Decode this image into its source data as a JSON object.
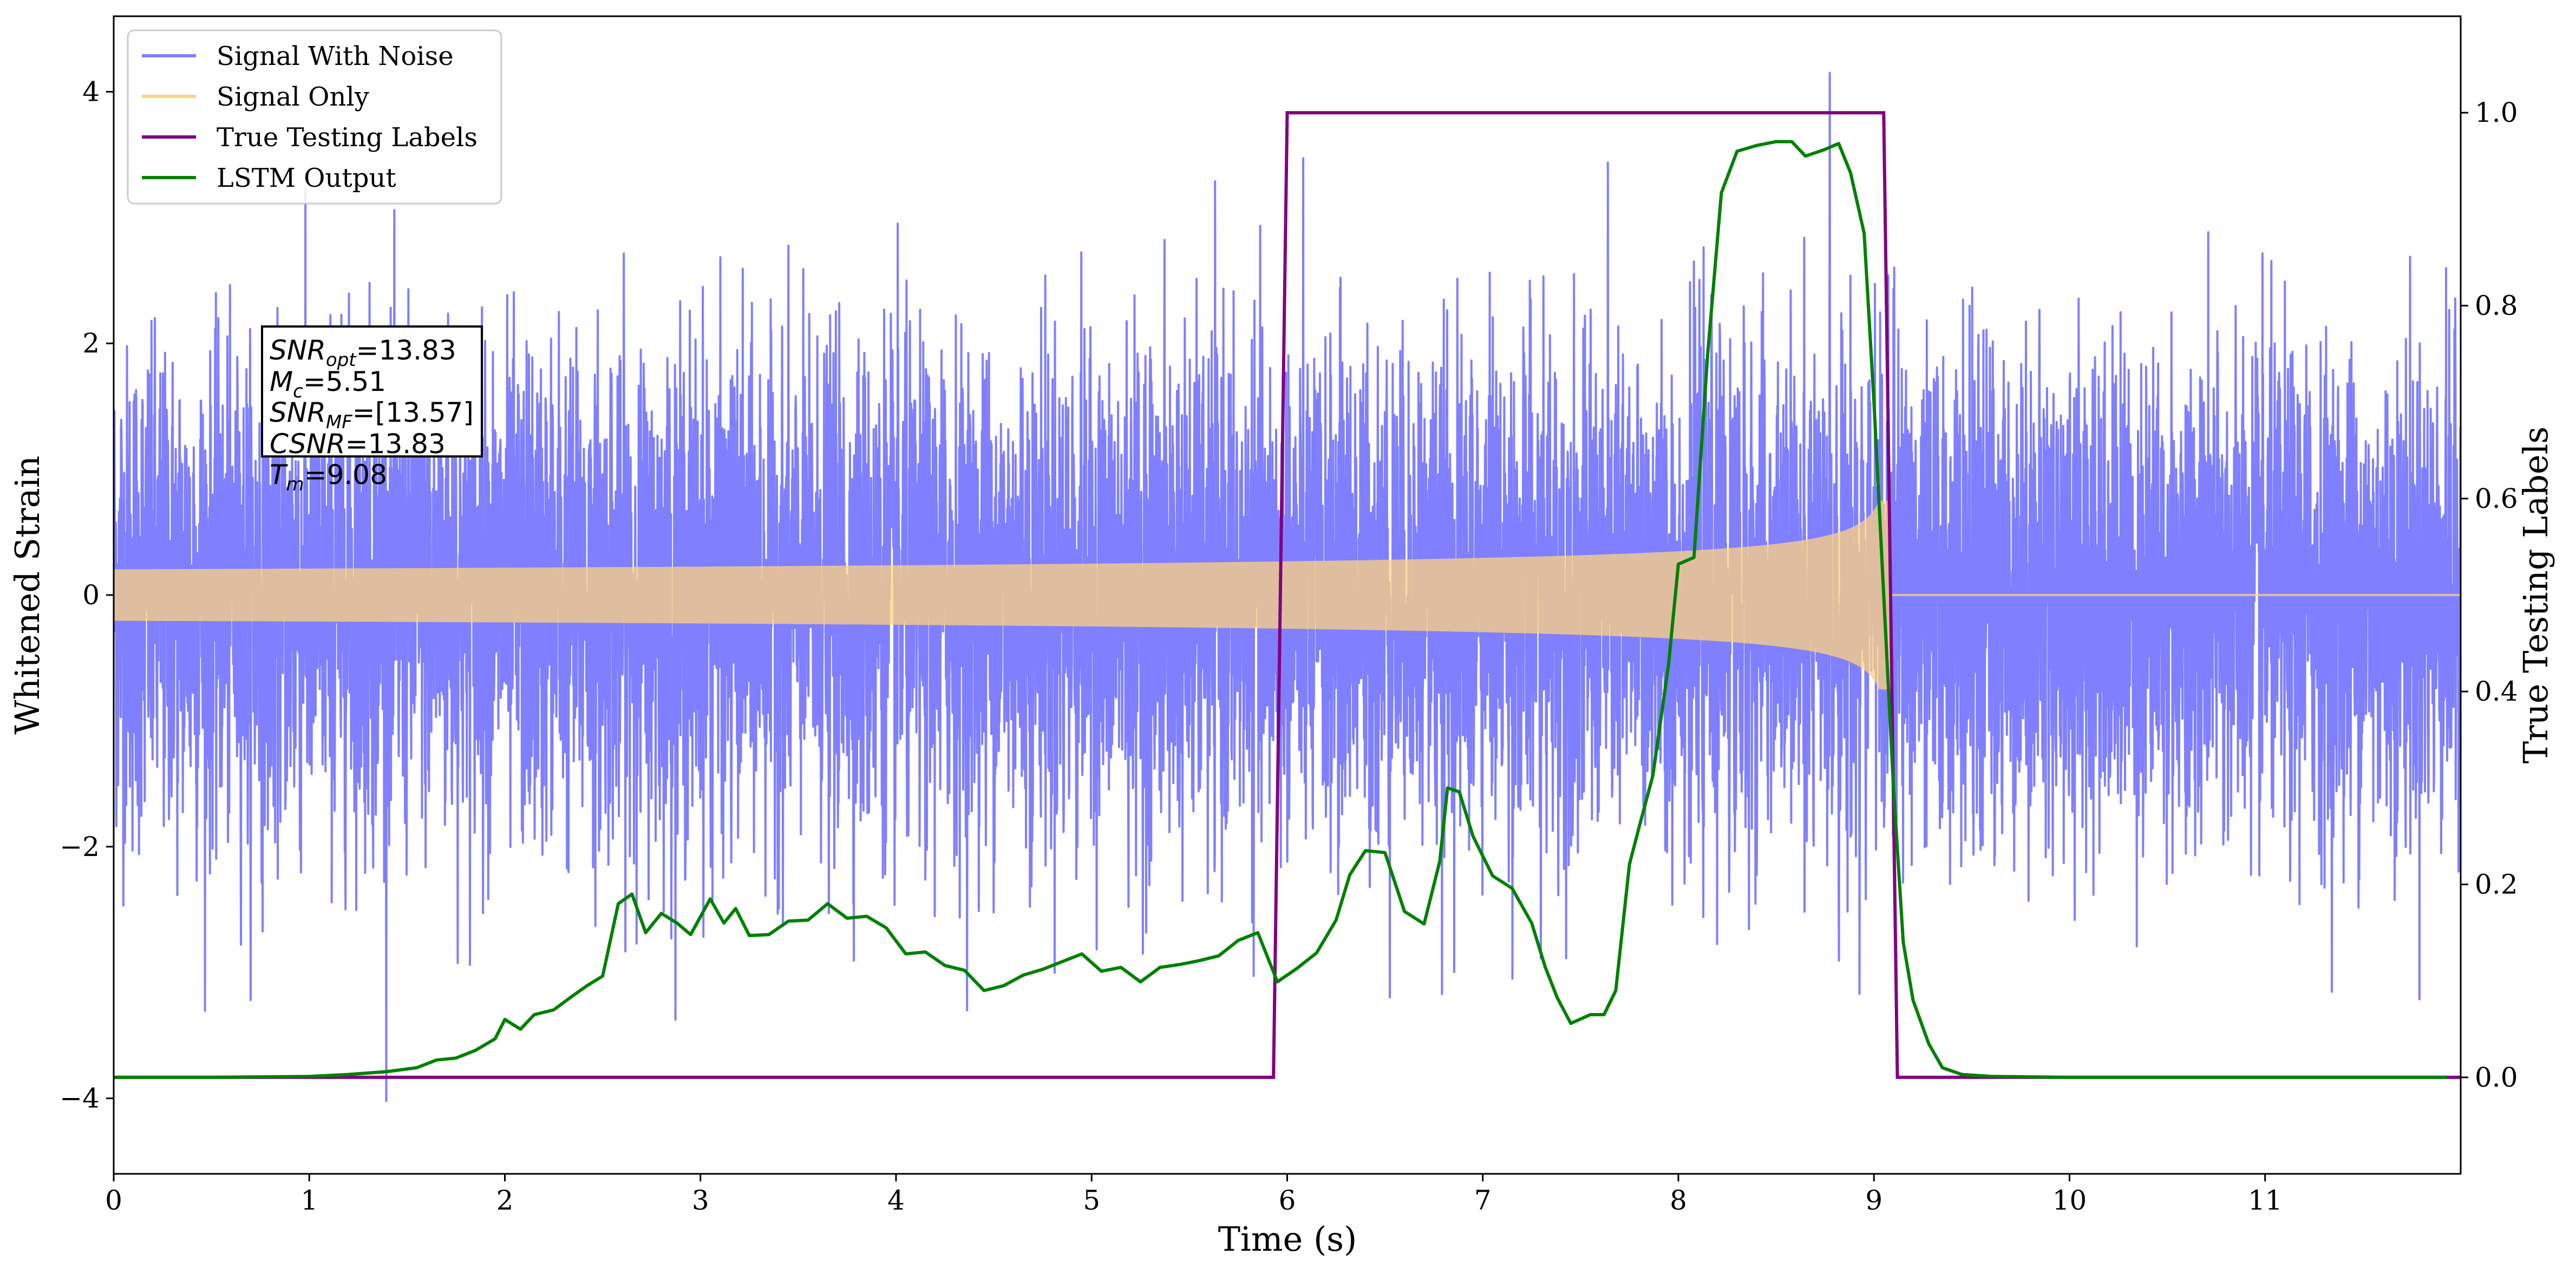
{
  "chart_data": {
    "type": "line",
    "xlabel": "Time (s)",
    "ylabel_left": "Whitened Strain",
    "ylabel_right": "True Testing Labels",
    "xlim": [
      0,
      12
    ],
    "ylim_left": [
      -4.6,
      4.6
    ],
    "ylim_right": [
      -0.1,
      1.1
    ],
    "x_ticks": [
      0,
      1,
      2,
      3,
      4,
      5,
      6,
      7,
      8,
      9,
      10,
      11
    ],
    "y_ticks_left": [
      -4,
      -2,
      0,
      2,
      4
    ],
    "y_ticks_right": [
      0.0,
      0.2,
      0.4,
      0.6,
      0.8,
      1.0
    ],
    "x_tick_labels": [
      "0",
      "1",
      "2",
      "3",
      "4",
      "5",
      "6",
      "7",
      "8",
      "9",
      "10",
      "11"
    ],
    "y_tick_labels_left": [
      "−4",
      "−2",
      "0",
      "2",
      "4"
    ],
    "y_tick_labels_right": [
      "0.0",
      "0.2",
      "0.4",
      "0.6",
      "0.8",
      "1.0"
    ],
    "grid": false,
    "legend_position": "top-left",
    "legend": [
      {
        "name": "Signal With Noise",
        "color": "#7f7fff"
      },
      {
        "name": "Signal Only",
        "color": "#ffd37f"
      },
      {
        "name": "True Testing Labels",
        "color": "#800080"
      },
      {
        "name": "LSTM Output",
        "color": "#008000"
      }
    ],
    "series": [
      {
        "name": "Signal With Noise",
        "axis": "left",
        "style": "noise",
        "noise_std": 0.95,
        "noise_range": [
          -4.2,
          4.15
        ],
        "color": "#7f7fff"
      },
      {
        "name": "Signal Only",
        "axis": "left",
        "style": "chirp",
        "amplitude_start": 0.05,
        "amplitude_end": 0.75,
        "merger_time": 9.08,
        "color": "#ffd37f"
      },
      {
        "name": "True Testing Labels",
        "axis": "right",
        "color": "#800080",
        "x": [
          0,
          5.93,
          6.0,
          9.05,
          9.12,
          12
        ],
        "values": [
          0,
          0,
          1,
          1,
          0,
          0
        ]
      },
      {
        "name": "LSTM Output",
        "axis": "right",
        "color": "#008000",
        "x": [
          0,
          0.5,
          1.0,
          1.2,
          1.4,
          1.55,
          1.65,
          1.75,
          1.85,
          1.95,
          2.0,
          2.08,
          2.15,
          2.25,
          2.35,
          2.42,
          2.5,
          2.58,
          2.65,
          2.72,
          2.8,
          2.88,
          2.95,
          3.05,
          3.12,
          3.18,
          3.25,
          3.35,
          3.45,
          3.55,
          3.65,
          3.75,
          3.85,
          3.95,
          4.05,
          4.15,
          4.25,
          4.35,
          4.45,
          4.55,
          4.65,
          4.75,
          4.85,
          4.95,
          5.05,
          5.15,
          5.25,
          5.35,
          5.45,
          5.55,
          5.65,
          5.75,
          5.85,
          5.95,
          6.05,
          6.15,
          6.25,
          6.32,
          6.4,
          6.5,
          6.6,
          6.7,
          6.78,
          6.82,
          6.88,
          6.95,
          7.05,
          7.15,
          7.25,
          7.32,
          7.38,
          7.45,
          7.55,
          7.62,
          7.68,
          7.75,
          7.8,
          7.87,
          7.95,
          8.0,
          8.08,
          8.15,
          8.22,
          8.3,
          8.4,
          8.5,
          8.58,
          8.65,
          8.75,
          8.82,
          8.88,
          8.95,
          9.0,
          9.05,
          9.1,
          9.15,
          9.2,
          9.28,
          9.35,
          9.45,
          9.6,
          10.0,
          11.0,
          11.93
        ],
        "values": [
          0,
          0,
          0.001,
          0.003,
          0.006,
          0.01,
          0.018,
          0.02,
          0.028,
          0.04,
          0.06,
          0.05,
          0.065,
          0.07,
          0.085,
          0.095,
          0.105,
          0.18,
          0.19,
          0.15,
          0.17,
          0.16,
          0.148,
          0.185,
          0.16,
          0.175,
          0.147,
          0.148,
          0.162,
          0.163,
          0.18,
          0.165,
          0.167,
          0.155,
          0.128,
          0.13,
          0.116,
          0.111,
          0.09,
          0.095,
          0.106,
          0.112,
          0.12,
          0.128,
          0.11,
          0.114,
          0.099,
          0.114,
          0.117,
          0.121,
          0.126,
          0.142,
          0.15,
          0.099,
          0.113,
          0.129,
          0.163,
          0.21,
          0.235,
          0.233,
          0.172,
          0.159,
          0.224,
          0.3,
          0.296,
          0.25,
          0.209,
          0.196,
          0.16,
          0.114,
          0.083,
          0.056,
          0.065,
          0.065,
          0.09,
          0.221,
          0.26,
          0.313,
          0.428,
          0.532,
          0.539,
          0.75,
          0.917,
          0.96,
          0.966,
          0.97,
          0.97,
          0.955,
          0.962,
          0.968,
          0.938,
          0.875,
          0.7,
          0.5,
          0.3,
          0.14,
          0.08,
          0.035,
          0.01,
          0.003,
          0.001,
          0,
          0,
          0
        ]
      }
    ],
    "annotation": {
      "lines": [
        {
          "base": "SNR",
          "sub": "opt",
          "value": "=13.83"
        },
        {
          "base": "M",
          "sub": "c",
          "value": "=5.51"
        },
        {
          "base": "SNR",
          "sub": "MF",
          "value": "=[13.57]"
        },
        {
          "base": "CSNR",
          "sub": "",
          "value": "=13.83"
        },
        {
          "base": "T",
          "sub": "m",
          "value": "=9.08"
        }
      ]
    }
  }
}
